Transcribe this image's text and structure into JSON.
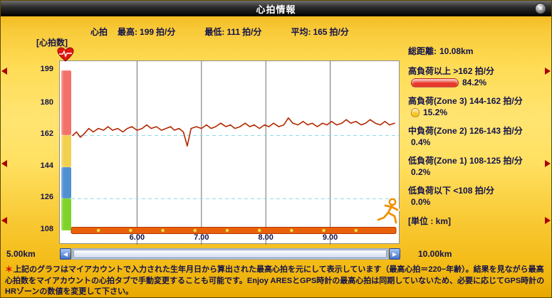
{
  "window": {
    "title": "心拍情報",
    "close_label": "×"
  },
  "stats": {
    "prefix": "心拍",
    "items": [
      {
        "label": "最高:",
        "value": "199",
        "unit": "拍/分"
      },
      {
        "label": "最低:",
        "value": "111",
        "unit": "拍/分"
      },
      {
        "label": "平均:",
        "value": "165",
        "unit": "拍/分"
      }
    ]
  },
  "chart": {
    "y_axis_title": "[心拍数]",
    "y_ticks": [
      {
        "bpm": 199,
        "label": "199"
      },
      {
        "bpm": 180,
        "label": "180"
      },
      {
        "bpm": 162,
        "label": "162"
      },
      {
        "bpm": 144,
        "label": "144"
      },
      {
        "bpm": 126,
        "label": "126"
      },
      {
        "bpm": 108,
        "label": "108"
      }
    ],
    "x_ticks": [
      {
        "km": 6,
        "label": "6.00"
      },
      {
        "km": 7,
        "label": "7.00"
      },
      {
        "km": 8,
        "label": "8.00"
      },
      {
        "km": 9,
        "label": "9.00"
      }
    ],
    "zones": [
      {
        "from": 162,
        "to": 199,
        "color": "#f4716a"
      },
      {
        "from": 144,
        "to": 162,
        "color": "#f2d14f"
      },
      {
        "from": 126,
        "to": 144,
        "color": "#4e90d0"
      },
      {
        "from": 108,
        "to": 126,
        "color": "#7fd229"
      }
    ],
    "dashed_levels": [
      162,
      126
    ],
    "track_dots_km": [
      5.4,
      5.9,
      6.4,
      6.9,
      7.4,
      7.9,
      8.4,
      8.9,
      9.4
    ],
    "line_color": "#b22800",
    "track_bar_color": "#e9610a",
    "grid_color": "#6f6f6f",
    "dashed_color": "#8fd9ec"
  },
  "chart_data": {
    "type": "line",
    "title": "心拍数の推移",
    "xlabel": "km",
    "ylabel": "拍/分",
    "x_visible_range": [
      5.0,
      10.0
    ],
    "ylim": [
      108,
      199
    ],
    "points": [
      [
        5.0,
        162
      ],
      [
        5.06,
        164
      ],
      [
        5.12,
        161
      ],
      [
        5.18,
        163
      ],
      [
        5.25,
        166
      ],
      [
        5.32,
        164
      ],
      [
        5.4,
        166
      ],
      [
        5.48,
        165
      ],
      [
        5.55,
        167
      ],
      [
        5.62,
        165
      ],
      [
        5.7,
        166
      ],
      [
        5.78,
        164
      ],
      [
        5.85,
        166
      ],
      [
        5.92,
        167
      ],
      [
        6.0,
        165
      ],
      [
        6.08,
        166
      ],
      [
        6.15,
        168
      ],
      [
        6.22,
        166
      ],
      [
        6.3,
        167
      ],
      [
        6.38,
        165
      ],
      [
        6.45,
        166
      ],
      [
        6.52,
        167
      ],
      [
        6.58,
        165
      ],
      [
        6.65,
        166
      ],
      [
        6.72,
        164
      ],
      [
        6.78,
        156
      ],
      [
        6.84,
        166
      ],
      [
        6.92,
        167
      ],
      [
        7.0,
        166
      ],
      [
        7.08,
        168
      ],
      [
        7.15,
        166
      ],
      [
        7.22,
        167
      ],
      [
        7.3,
        169
      ],
      [
        7.38,
        167
      ],
      [
        7.45,
        168
      ],
      [
        7.52,
        166
      ],
      [
        7.6,
        167
      ],
      [
        7.68,
        169
      ],
      [
        7.75,
        167
      ],
      [
        7.82,
        168
      ],
      [
        7.9,
        166
      ],
      [
        7.98,
        168
      ],
      [
        8.05,
        167
      ],
      [
        8.12,
        169
      ],
      [
        8.2,
        167
      ],
      [
        8.28,
        168
      ],
      [
        8.35,
        172
      ],
      [
        8.42,
        169
      ],
      [
        8.5,
        168
      ],
      [
        8.58,
        170
      ],
      [
        8.65,
        168
      ],
      [
        8.72,
        169
      ],
      [
        8.8,
        167
      ],
      [
        8.88,
        169
      ],
      [
        8.95,
        168
      ],
      [
        9.02,
        170
      ],
      [
        9.1,
        168
      ],
      [
        9.18,
        169
      ],
      [
        9.25,
        171
      ],
      [
        9.32,
        169
      ],
      [
        9.4,
        170
      ],
      [
        9.48,
        168
      ],
      [
        9.55,
        169
      ],
      [
        9.62,
        171
      ],
      [
        9.7,
        169
      ],
      [
        9.78,
        168
      ],
      [
        9.85,
        170
      ],
      [
        9.92,
        168
      ],
      [
        10.0,
        169
      ]
    ]
  },
  "hr_zones": {
    "total_distance_label": "総距離:",
    "total_distance_value": "10.08km",
    "entries": [
      {
        "title": "高負荷以上 >162 拍/分",
        "pct_label": "84.2%",
        "pct_value": 84.2,
        "color": "#e8382a"
      },
      {
        "title": "高負荷(Zone 3) 144-162 拍/分",
        "pct_label": "15.2%",
        "pct_value": 15.2,
        "color": "#f6c51c"
      },
      {
        "title": "中負荷(Zone 2) 126-143 拍/分",
        "pct_label": "0.4%",
        "pct_value": 0.4,
        "color": "#4e90d0"
      },
      {
        "title": "低負荷(Zone 1) 108-125 拍/分",
        "pct_label": "0.2%",
        "pct_value": 0.2,
        "color": "#7fd229"
      },
      {
        "title": "低負荷以下 <108 拍/分",
        "pct_label": "0.0%",
        "pct_value": 0.0,
        "color": "#9a9a9a"
      }
    ],
    "unit_label": "[単位 : km]"
  },
  "scrollbar": {
    "left_label": "5.00km",
    "right_label": "10.00km",
    "left_arrow": "◀",
    "right_arrow": "▶"
  },
  "footer": {
    "marker": "＊",
    "note": "上記のグラフはマイアカウントで入力された生年月日から算出された最高心拍を元にして表示しています（最高心拍＝220−年齢）。結果を見ながら最高心拍数をマイアカウントの心拍タブで手動変更することも可能です。Enjoy ARESとGPS時計の最高心拍は同期していないため、必要に応じてGPS時計のHRゾーンの数値を変更して下さい。"
  }
}
